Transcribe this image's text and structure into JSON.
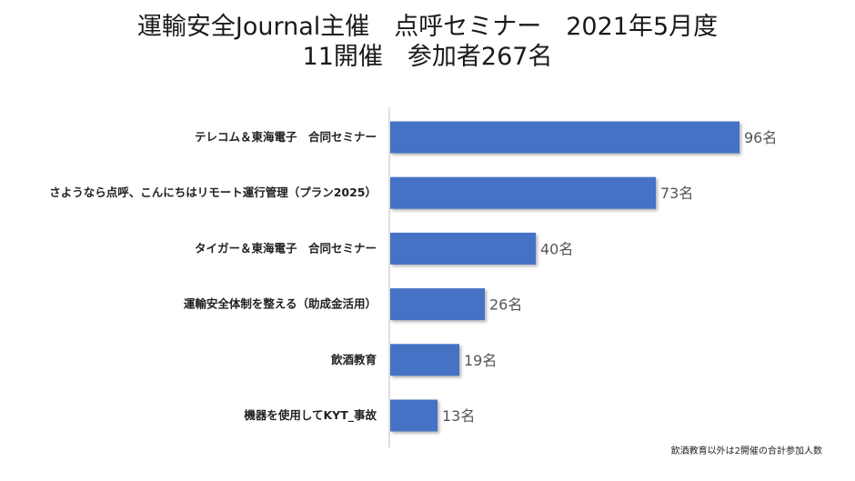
{
  "chart_data": {
    "type": "bar",
    "orientation": "horizontal",
    "title_line1": "運輸安全Journal主催　点呼セミナー　2021年5月度",
    "title_line2": "11開催　参加者267名",
    "categories": [
      "テレコム＆東海電子　合同セミナー",
      "さようなら点呼、こんにちはリモート運行管理（プラン2025）",
      "タイガー＆東海電子　合同セミナー",
      "運輸安全体制を整える（助成金活用）",
      "飲酒教育",
      "機器を使用してKYT_事故"
    ],
    "values": [
      96,
      73,
      40,
      26,
      19,
      13
    ],
    "value_labels": [
      "96名",
      "73名",
      "40名",
      "26名",
      "19名",
      "13名"
    ],
    "bar_color": "#4472C4",
    "grid": false,
    "footnote": "飲酒教育以外は2開催の合計参加人数"
  }
}
